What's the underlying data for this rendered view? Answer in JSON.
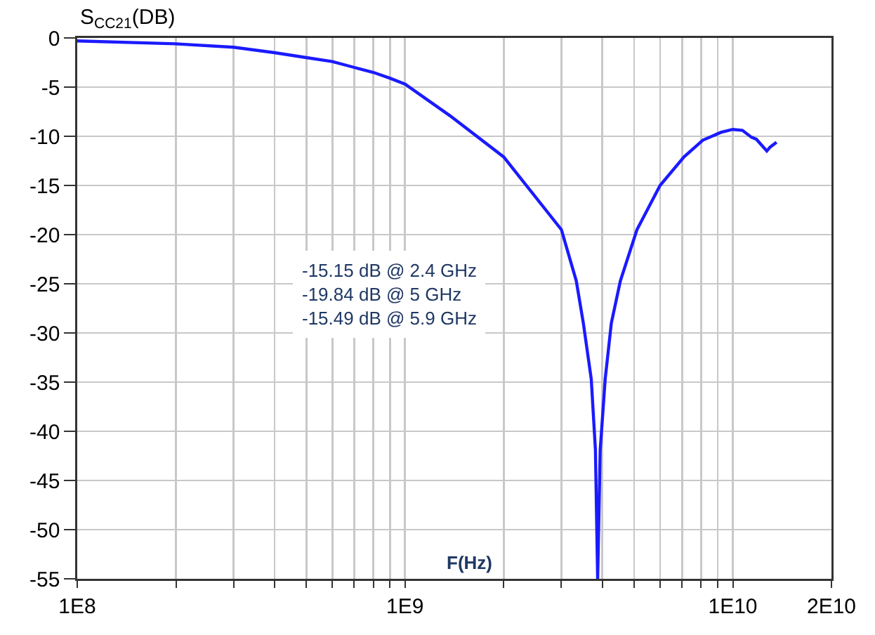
{
  "chart_data": {
    "type": "line",
    "ylabel": "S$_{CC21}$(DB)",
    "xlabel": "F(Hz)",
    "log": "x",
    "grid": true,
    "marker": "none",
    "line_style": "solid",
    "annotations": [
      "-15.15 dB @ 2.4 GHz\n-19.84 dB @ 5 GHz\n-15.49 dB @ 5.9 GHz"
    ],
    "xlim": [
      100000000.0,
      20000000000.0
    ],
    "xticks": [
      {
        "value": 100000000.0,
        "label": "1E8"
      },
      {
        "value": 200000000.0,
        "label": null
      },
      {
        "value": 300000000.0,
        "label": null
      },
      {
        "value": 400000000.0,
        "label": null
      },
      {
        "value": 500000000.0,
        "label": null
      },
      {
        "value": 600000000.0,
        "label": null
      },
      {
        "value": 700000000.0,
        "label": null
      },
      {
        "value": 800000000.0,
        "label": null
      },
      {
        "value": 900000000.0,
        "label": null
      },
      {
        "value": 1000000000.0,
        "label": "1E9"
      },
      {
        "value": 2000000000.0,
        "label": null
      },
      {
        "value": 3000000000.0,
        "label": null
      },
      {
        "value": 4000000000.0,
        "label": null
      },
      {
        "value": 5000000000.0,
        "label": null
      },
      {
        "value": 6000000000.0,
        "label": null
      },
      {
        "value": 7000000000.0,
        "label": null
      },
      {
        "value": 8000000000.0,
        "label": null
      },
      {
        "value": 9000000000.0,
        "label": null
      },
      {
        "value": 10000000000.0,
        "label": "1E10"
      },
      {
        "value": 20000000000.0,
        "label": "2E10"
      }
    ],
    "ylim": [
      -55,
      0
    ],
    "yticks": [
      0,
      -5,
      -10,
      -15,
      -20,
      -25,
      -30,
      -35,
      -40,
      -45,
      -50,
      -55
    ],
    "series": [
      {
        "color": "#1a1aff",
        "x": [
          100000000.0,
          200000000.0,
          300000000.0,
          400000000.0,
          500000000.0,
          600000000.0,
          700000000.0,
          800000000.0,
          900000000.0,
          1000000000.0,
          1370000000.0,
          2000000000.0,
          3000000000.0,
          3330000000.0,
          3500000000.0,
          3700000000.0,
          3810000000.0,
          3870000000.0,
          3940000000.0,
          4080000000.0,
          4260000000.0,
          4540000000.0,
          5100000000.0,
          6000000000.0,
          7100000000.0,
          8100000000.0,
          9200000000.0,
          10000000000.0,
          10700000000.0,
          11400000000.0,
          11800000000.0,
          12700000000.0,
          13000000000.0,
          13600000000.0
        ],
        "values": [
          -0.3,
          -0.6,
          -0.95,
          -1.5,
          -2.0,
          -2.4,
          -3.0,
          -3.5,
          -4.1,
          -4.7,
          -7.9,
          -12.1,
          -19.5,
          -24.7,
          -29,
          -34.7,
          -41.9,
          -55,
          -41.9,
          -34.7,
          -29,
          -24.7,
          -19.5,
          -15.0,
          -12.1,
          -10.4,
          -9.6,
          -9.3,
          -9.4,
          -10.1,
          -10.3,
          -11.5,
          -11.1,
          -10.6
        ]
      }
    ]
  }
}
